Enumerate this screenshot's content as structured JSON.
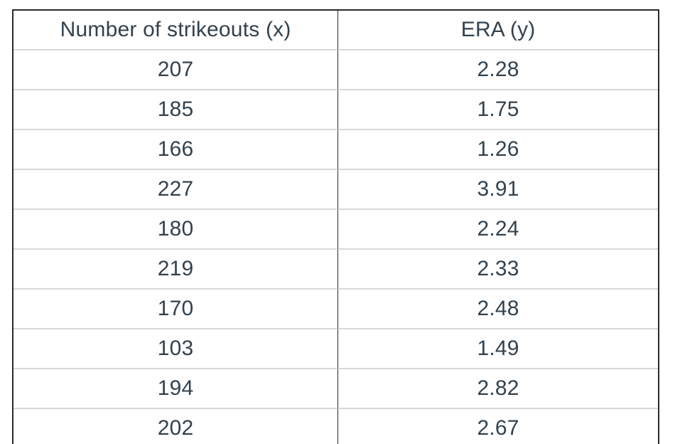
{
  "chart_data": {
    "type": "table",
    "title": "",
    "columns": [
      "Number of strikeouts (x)",
      "ERA (y)"
    ],
    "rows": [
      [
        "207",
        "2.28"
      ],
      [
        "185",
        "1.75"
      ],
      [
        "166",
        "1.26"
      ],
      [
        "227",
        "3.91"
      ],
      [
        "180",
        "2.24"
      ],
      [
        "219",
        "2.33"
      ],
      [
        "170",
        "2.48"
      ],
      [
        "103",
        "1.49"
      ],
      [
        "194",
        "2.82"
      ],
      [
        "202",
        "2.67"
      ]
    ]
  },
  "colors": {
    "text": "#32424e",
    "outer_border": "#2a2a2a",
    "column_divider": "#2a2a2a",
    "row_separator": "#d8d8d8",
    "background": "#ffffff"
  }
}
